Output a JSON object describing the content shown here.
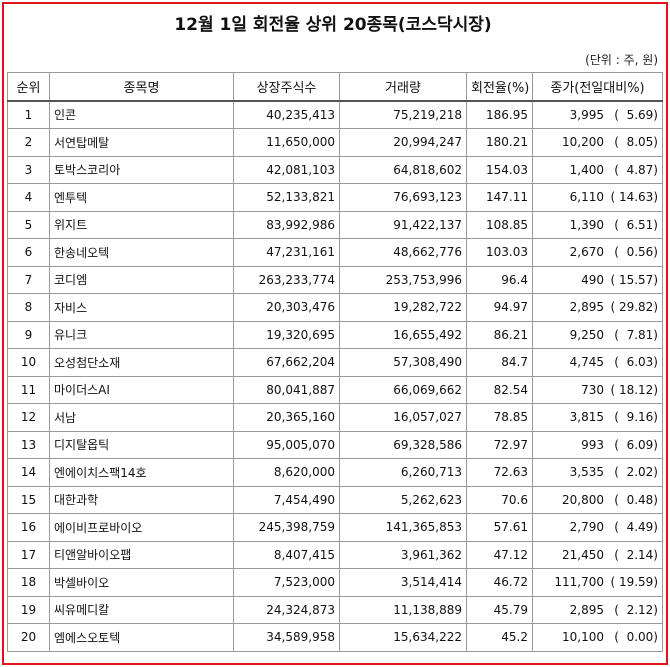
{
  "title": "12월 1일 회전율 상위 20종목(코스닥시장)",
  "unit": "(단위 : 주, 원)",
  "columns": [
    "순위",
    "종목명",
    "상장주식수",
    "거래량",
    "회전율(%)",
    "종가(전일대비%)"
  ],
  "rows": [
    {
      "rank": "1",
      "name": "인콘",
      "listed": "40,235,413",
      "volume": "75,219,218",
      "turnover": "186.95",
      "price": "3,995",
      "change": "(  5.69)"
    },
    {
      "rank": "2",
      "name": "서연탑메탈",
      "listed": "11,650,000",
      "volume": "20,994,247",
      "turnover": "180.21",
      "price": "10,200",
      "change": "(  8.05)"
    },
    {
      "rank": "3",
      "name": "토박스코리아",
      "listed": "42,081,103",
      "volume": "64,818,602",
      "turnover": "154.03",
      "price": "1,400",
      "change": "(  4.87)"
    },
    {
      "rank": "4",
      "name": "엔투텍",
      "listed": "52,133,821",
      "volume": "76,693,123",
      "turnover": "147.11",
      "price": "6,110",
      "change": "( 14.63)"
    },
    {
      "rank": "5",
      "name": "위지트",
      "listed": "83,992,986",
      "volume": "91,422,137",
      "turnover": "108.85",
      "price": "1,390",
      "change": "(  6.51)"
    },
    {
      "rank": "6",
      "name": "한송네오텍",
      "listed": "47,231,161",
      "volume": "48,662,776",
      "turnover": "103.03",
      "price": "2,670",
      "change": "(  0.56)"
    },
    {
      "rank": "7",
      "name": "코디엠",
      "listed": "263,233,774",
      "volume": "253,753,996",
      "turnover": "96.4",
      "price": "490",
      "change": "( 15.57)"
    },
    {
      "rank": "8",
      "name": "자비스",
      "listed": "20,303,476",
      "volume": "19,282,722",
      "turnover": "94.97",
      "price": "2,895",
      "change": "( 29.82)"
    },
    {
      "rank": "9",
      "name": "유니크",
      "listed": "19,320,695",
      "volume": "16,655,492",
      "turnover": "86.21",
      "price": "9,250",
      "change": "(  7.81)"
    },
    {
      "rank": "10",
      "name": "오성첨단소재",
      "listed": "67,662,204",
      "volume": "57,308,490",
      "turnover": "84.7",
      "price": "4,745",
      "change": "(  6.03)"
    },
    {
      "rank": "11",
      "name": "마이더스AI",
      "listed": "80,041,887",
      "volume": "66,069,662",
      "turnover": "82.54",
      "price": "730",
      "change": "( 18.12)"
    },
    {
      "rank": "12",
      "name": "서남",
      "listed": "20,365,160",
      "volume": "16,057,027",
      "turnover": "78.85",
      "price": "3,815",
      "change": "(  9.16)"
    },
    {
      "rank": "13",
      "name": "디지탈옵틱",
      "listed": "95,005,070",
      "volume": "69,328,586",
      "turnover": "72.97",
      "price": "993",
      "change": "(  6.09)"
    },
    {
      "rank": "14",
      "name": "엔에이치스팩14호",
      "listed": "8,620,000",
      "volume": "6,260,713",
      "turnover": "72.63",
      "price": "3,535",
      "change": "(  2.02)"
    },
    {
      "rank": "15",
      "name": "대한과학",
      "listed": "7,454,490",
      "volume": "5,262,623",
      "turnover": "70.6",
      "price": "20,800",
      "change": "(  0.48)"
    },
    {
      "rank": "16",
      "name": "에이비프로바이오",
      "listed": "245,398,759",
      "volume": "141,365,853",
      "turnover": "57.61",
      "price": "2,790",
      "change": "(  4.49)"
    },
    {
      "rank": "17",
      "name": "티앤알바이오팹",
      "listed": "8,407,415",
      "volume": "3,961,362",
      "turnover": "47.12",
      "price": "21,450",
      "change": "(  2.14)"
    },
    {
      "rank": "18",
      "name": "박셀바이오",
      "listed": "7,523,000",
      "volume": "3,514,414",
      "turnover": "46.72",
      "price": "111,700",
      "change": "( 19.59)"
    },
    {
      "rank": "19",
      "name": "씨유메디칼",
      "listed": "24,324,873",
      "volume": "11,138,889",
      "turnover": "45.79",
      "price": "2,895",
      "change": "(  2.12)"
    },
    {
      "rank": "20",
      "name": "엠에스오토텍",
      "listed": "34,589,958",
      "volume": "15,634,222",
      "turnover": "45.2",
      "price": "10,100",
      "change": "(  0.00)"
    }
  ]
}
